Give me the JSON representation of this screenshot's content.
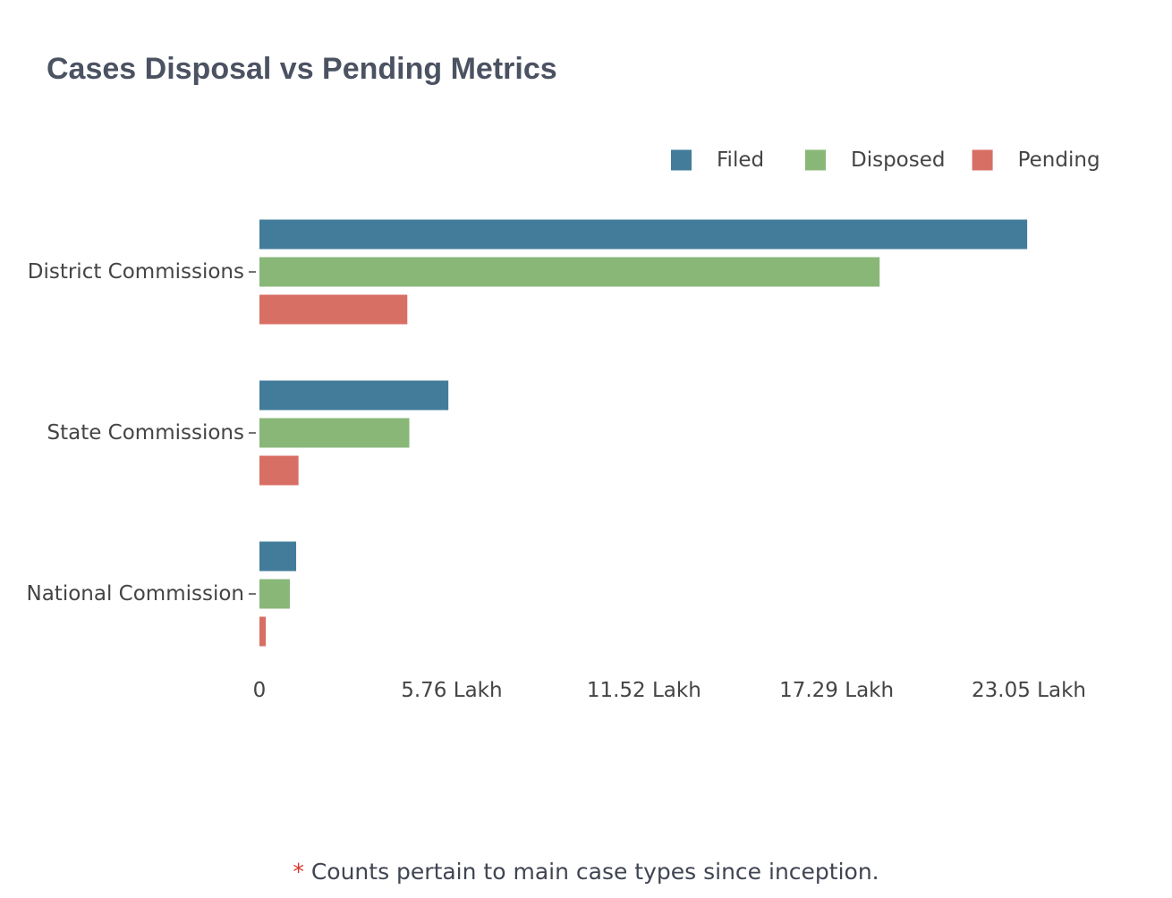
{
  "chart_data": {
    "type": "bar",
    "orientation": "horizontal",
    "title": "Cases Disposal vs Pending Metrics",
    "categories": [
      "District Commissions",
      "State Commissions",
      "National Commission"
    ],
    "series": [
      {
        "name": "Filed",
        "color": "#437c9b",
        "values": [
          2300000,
          566000,
          110000
        ]
      },
      {
        "name": "Disposed",
        "color": "#88b778",
        "values": [
          1858000,
          449000,
          91000
        ]
      },
      {
        "name": "Pending",
        "color": "#d86f64",
        "values": [
          443000,
          117000,
          19000
        ]
      }
    ],
    "x_ticks": [
      {
        "value": 0,
        "label": "0"
      },
      {
        "value": 576000,
        "label": "5.76 Lakh"
      },
      {
        "value": 1152000,
        "label": "11.52 Lakh"
      },
      {
        "value": 1729000,
        "label": "17.29 Lakh"
      },
      {
        "value": 2305000,
        "label": "23.05 Lakh"
      }
    ],
    "xlim": [
      0,
      2305000
    ],
    "xlabel": "",
    "ylabel": "",
    "grid": false,
    "legend_position": "top-right"
  },
  "footnote": {
    "marker": "*",
    "text": " Counts pertain to main case types since inception."
  }
}
